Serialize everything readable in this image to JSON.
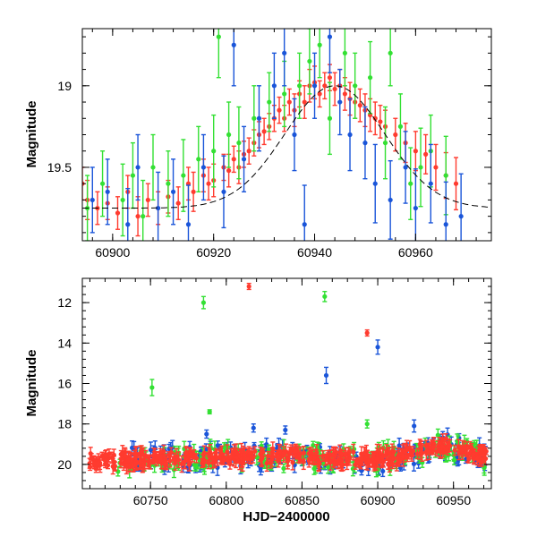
{
  "chart_data": [
    {
      "type": "scatter",
      "panel": "top",
      "title": "",
      "xlabel": "",
      "ylabel": "Magnitude",
      "xlim": [
        60894,
        60975
      ],
      "ylim": [
        19.95,
        18.65
      ],
      "y_inverted": true,
      "xticks": [
        60900,
        60920,
        60940,
        60960
      ],
      "xtick_labels": [
        "60900",
        "60920",
        "60940",
        "60960"
      ],
      "yticks": [
        19.0,
        19.5
      ],
      "ytick_labels": [
        "19",
        "19.5"
      ],
      "series": [
        {
          "name": "red",
          "color": "#ff3b2f",
          "points": [
            [
              60894,
              19.6,
              0.1
            ],
            [
              60895,
              19.7,
              0.12
            ],
            [
              60897,
              19.75,
              0.1
            ],
            [
              60899,
              19.72,
              0.1
            ],
            [
              60901,
              19.78,
              0.1
            ],
            [
              60903,
              19.65,
              0.1
            ],
            [
              60905,
              19.8,
              0.12
            ],
            [
              60907,
              19.7,
              0.1
            ],
            [
              60909,
              19.75,
              0.1
            ],
            [
              60911,
              19.68,
              0.1
            ],
            [
              60913,
              19.72,
              0.1
            ],
            [
              60915,
              19.6,
              0.1
            ],
            [
              60916,
              19.65,
              0.12
            ],
            [
              60918,
              19.55,
              0.1
            ],
            [
              60919,
              19.6,
              0.1
            ],
            [
              60920,
              19.58,
              0.1
            ],
            [
              60922,
              19.5,
              0.08
            ],
            [
              60923,
              19.52,
              0.1
            ],
            [
              60924,
              19.45,
              0.08
            ],
            [
              60925,
              19.5,
              0.1
            ],
            [
              60926,
              19.42,
              0.08
            ],
            [
              60927,
              19.4,
              0.08
            ],
            [
              60928,
              19.35,
              0.08
            ],
            [
              60929,
              19.3,
              0.08
            ],
            [
              60930,
              19.28,
              0.08
            ],
            [
              60931,
              19.25,
              0.08
            ],
            [
              60932,
              19.2,
              0.08
            ],
            [
              60933,
              19.15,
              0.08
            ],
            [
              60934,
              19.2,
              0.08
            ],
            [
              60935,
              19.1,
              0.08
            ],
            [
              60936,
              19.15,
              0.1
            ],
            [
              60937,
              19.05,
              0.08
            ],
            [
              60938,
              19.1,
              0.1
            ],
            [
              60939,
              19.0,
              0.1
            ],
            [
              60940,
              18.98,
              0.1
            ],
            [
              60941,
              19.05,
              0.08
            ],
            [
              60942,
              19.0,
              0.08
            ],
            [
              60943,
              18.95,
              0.08
            ],
            [
              60944,
              19.02,
              0.1
            ],
            [
              60945,
              19.0,
              0.1
            ],
            [
              60946,
              19.05,
              0.1
            ],
            [
              60947,
              19.08,
              0.1
            ],
            [
              60948,
              19.1,
              0.1
            ],
            [
              60949,
              19.12,
              0.1
            ],
            [
              60950,
              19.15,
              0.1
            ],
            [
              60951,
              19.18,
              0.1
            ],
            [
              60952,
              19.2,
              0.1
            ],
            [
              60953,
              19.22,
              0.1
            ],
            [
              60954,
              19.25,
              0.1
            ],
            [
              60956,
              19.3,
              0.1
            ],
            [
              60958,
              19.35,
              0.12
            ],
            [
              60960,
              19.4,
              0.12
            ],
            [
              60962,
              19.42,
              0.12
            ],
            [
              60964,
              19.5,
              0.14
            ],
            [
              60966,
              19.55,
              0.14
            ],
            [
              60968,
              19.6,
              0.16
            ]
          ]
        },
        {
          "name": "green",
          "color": "#33e033",
          "points": [
            [
              60895,
              19.75,
              0.2
            ],
            [
              60898,
              19.6,
              0.2
            ],
            [
              60902,
              19.7,
              0.22
            ],
            [
              60904,
              19.55,
              0.2
            ],
            [
              60906,
              19.8,
              0.22
            ],
            [
              60908,
              19.5,
              0.2
            ],
            [
              60911,
              19.6,
              0.2
            ],
            [
              60914,
              19.55,
              0.22
            ],
            [
              60917,
              19.45,
              0.2
            ],
            [
              60920,
              19.4,
              0.22
            ],
            [
              60921,
              18.7,
              0.25
            ],
            [
              60923,
              19.3,
              0.2
            ],
            [
              60925,
              19.35,
              0.22
            ],
            [
              60928,
              19.2,
              0.2
            ],
            [
              60931,
              19.1,
              0.18
            ],
            [
              60934,
              19.05,
              0.2
            ],
            [
              60937,
              19.0,
              0.2
            ],
            [
              60939,
              18.85,
              0.2
            ],
            [
              60941,
              18.75,
              0.2
            ],
            [
              60943,
              19.2,
              0.22
            ],
            [
              60946,
              18.8,
              0.2
            ],
            [
              60948,
              19.0,
              0.2
            ],
            [
              60951,
              18.95,
              0.22
            ],
            [
              60954,
              19.35,
              0.22
            ],
            [
              60955,
              18.8,
              0.2
            ],
            [
              60957,
              19.25,
              0.2
            ],
            [
              60959,
              19.6,
              0.22
            ],
            [
              60961,
              19.5,
              0.24
            ],
            [
              60963,
              19.4,
              0.22
            ],
            [
              60966,
              19.55,
              0.24
            ]
          ]
        },
        {
          "name": "blue",
          "color": "#1a55d9",
          "points": [
            [
              60896,
              19.7,
              0.2
            ],
            [
              60899,
              19.65,
              0.2
            ],
            [
              60903,
              19.85,
              0.22
            ],
            [
              60905,
              19.5,
              0.2
            ],
            [
              60909,
              19.75,
              0.22
            ],
            [
              60912,
              19.65,
              0.2
            ],
            [
              60915,
              19.85,
              0.24
            ],
            [
              60918,
              19.5,
              0.2
            ],
            [
              60922,
              19.65,
              0.22
            ],
            [
              60924,
              18.75,
              0.25
            ],
            [
              60926,
              19.45,
              0.2
            ],
            [
              60929,
              19.2,
              0.2
            ],
            [
              60932,
              19.0,
              0.2
            ],
            [
              60934,
              18.8,
              0.2
            ],
            [
              60936,
              19.3,
              0.22
            ],
            [
              60938,
              19.85,
              0.24
            ],
            [
              60940,
              19.0,
              0.2
            ],
            [
              60943,
              18.7,
              0.22
            ],
            [
              60945,
              19.1,
              0.2
            ],
            [
              60947,
              19.3,
              0.22
            ],
            [
              60950,
              19.35,
              0.22
            ],
            [
              60952,
              19.6,
              0.24
            ],
            [
              60955,
              19.7,
              0.24
            ],
            [
              60958,
              19.5,
              0.22
            ],
            [
              60960,
              19.75,
              0.24
            ],
            [
              60963,
              19.6,
              0.24
            ],
            [
              60966,
              19.85,
              0.26
            ],
            [
              60969,
              19.8,
              0.26
            ]
          ]
        }
      ],
      "model_curve": {
        "peak_x": 60944,
        "peak_y": 19.0,
        "width": 14,
        "baseline": 19.75
      }
    },
    {
      "type": "scatter",
      "panel": "bottom",
      "title": "",
      "xlabel": "HJD−2400000",
      "ylabel": "Magnitude",
      "xlim": [
        60705,
        60975
      ],
      "ylim": [
        21.2,
        10.8
      ],
      "y_inverted": true,
      "xticks": [
        60750,
        60800,
        60850,
        60900,
        60950
      ],
      "xtick_labels": [
        "60750",
        "60800",
        "60850",
        "60900",
        "60950"
      ],
      "yticks": [
        12,
        14,
        16,
        18,
        20
      ],
      "ytick_labels": [
        "12",
        "14",
        "16",
        "18",
        "20"
      ],
      "outliers": [
        {
          "series": "red",
          "x": 60815,
          "y": 11.2,
          "err": 0.15
        },
        {
          "series": "green",
          "x": 60785,
          "y": 12.0,
          "err": 0.3
        },
        {
          "series": "green",
          "x": 60865,
          "y": 11.7,
          "err": 0.25
        },
        {
          "series": "red",
          "x": 60893,
          "y": 13.5,
          "err": 0.15
        },
        {
          "series": "blue",
          "x": 60900,
          "y": 14.2,
          "err": 0.35
        },
        {
          "series": "blue",
          "x": 60866,
          "y": 15.6,
          "err": 0.4
        },
        {
          "series": "green",
          "x": 60751,
          "y": 16.2,
          "err": 0.4
        },
        {
          "series": "green",
          "x": 60789,
          "y": 17.4,
          "err": 0.1
        },
        {
          "series": "green",
          "x": 60893,
          "y": 18.0,
          "err": 0.2
        },
        {
          "series": "blue",
          "x": 60818,
          "y": 18.2,
          "err": 0.2
        },
        {
          "series": "blue",
          "x": 60839,
          "y": 18.3,
          "err": 0.2
        },
        {
          "series": "blue",
          "x": 60787,
          "y": 18.5,
          "err": 0.2
        },
        {
          "series": "blue",
          "x": 60924,
          "y": 18.1,
          "err": 0.3
        }
      ],
      "baseline_trend": [
        [
          60710,
          19.8
        ],
        [
          60730,
          19.75
        ],
        [
          60760,
          19.7
        ],
        [
          60790,
          19.65
        ],
        [
          60820,
          19.6
        ],
        [
          60850,
          19.6
        ],
        [
          60880,
          19.7
        ],
        [
          60905,
          19.75
        ],
        [
          60915,
          19.6
        ],
        [
          60925,
          19.4
        ],
        [
          60935,
          19.2
        ],
        [
          60945,
          19.05
        ],
        [
          60955,
          19.3
        ],
        [
          60970,
          19.6
        ]
      ]
    }
  ]
}
